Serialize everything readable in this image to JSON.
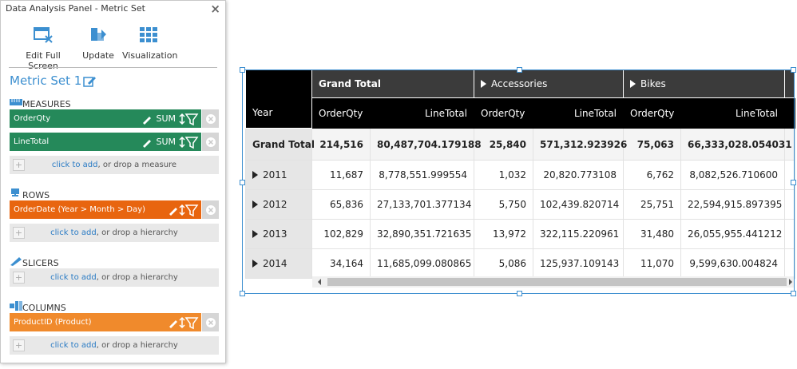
{
  "panel": {
    "title": "Data Analysis Panel - Metric Set",
    "toolbar": [
      "Edit Full Screen",
      "Update",
      "Visualization"
    ],
    "metric_set": "Metric Set 1",
    "sections": [
      {
        "label": "MEASURES",
        "items": [
          {
            "name": "OrderQty",
            "aggregate": "SUM"
          },
          {
            "name": "LineTotal",
            "aggregate": "SUM"
          }
        ],
        "add_link": "click to add",
        "add_hint": ", or drop a measure"
      },
      {
        "label": "ROWS",
        "items": [
          {
            "name": "OrderDate (Year > Month > Day)"
          }
        ],
        "add_link": "click to add",
        "add_hint": ", or drop a hierarchy"
      },
      {
        "label": "SLICERS",
        "items": [],
        "add_link": "click to add",
        "add_hint": ", or drop a hierarchy"
      },
      {
        "label": "COLUMNS",
        "items": [
          {
            "name": "ProductID (Product)"
          }
        ],
        "add_link": "click to add",
        "add_hint": ", or drop a hierarchy"
      }
    ]
  },
  "table": {
    "column_groups": [
      "Grand Total",
      "Accessories",
      "Bikes"
    ],
    "columns": [
      "Year",
      "OrderQty",
      "LineTotal",
      "OrderQty",
      "LineTotal",
      "OrderQty",
      "LineTotal"
    ],
    "rows": [
      {
        "label": "Grand Total",
        "cells": [
          "214,516",
          "80,487,704.179188",
          "25,840",
          "571,312.923926",
          "75,063",
          "66,333,028.054031"
        ]
      },
      {
        "label": "2011",
        "cells": [
          "11,687",
          "8,778,551.999554",
          "1,032",
          "20,820.773108",
          "6,762",
          "8,082,526.710600"
        ]
      },
      {
        "label": "2012",
        "cells": [
          "65,836",
          "27,133,701.377134",
          "5,750",
          "102,439.820714",
          "25,751",
          "22,594,915.897395"
        ]
      },
      {
        "label": "2013",
        "cells": [
          "102,829",
          "32,890,351.721635",
          "13,972",
          "322,115.220961",
          "31,480",
          "26,055,955.441212"
        ]
      },
      {
        "label": "2014",
        "cells": [
          "34,164",
          "11,685,099.080865",
          "5,086",
          "125,937.109143",
          "11,070",
          "9,599,630.004824"
        ]
      }
    ]
  }
}
